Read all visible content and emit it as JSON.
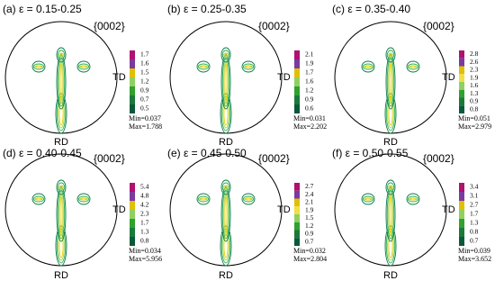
{
  "panels": [
    {
      "title": "(a) ε = 0.15-0.25",
      "plane": "{0002}",
      "td": "TD",
      "rd": "RD",
      "levels": [
        "1.7",
        "1.6",
        "1.5",
        "1.2",
        "0.9",
        "0.7",
        "0.5"
      ],
      "min": "Min=0.037",
      "max": "Max=1.788"
    },
    {
      "title": "(b) ε = 0.25-0.35",
      "plane": "{0002}",
      "td": "TD",
      "rd": "RD",
      "levels": [
        "2.1",
        "1.9",
        "1.7",
        "1.6",
        "1.2",
        "0.9",
        "0.6"
      ],
      "min": "Min=0.031",
      "max": "Max=2.202"
    },
    {
      "title": "(c) ε = 0.35-0.40",
      "plane": "{0002}",
      "td": "TD",
      "rd": "RD",
      "levels": [
        "2.8",
        "2.6",
        "2.3",
        "1.9",
        "1.6",
        "1.3",
        "0.9",
        "0.8"
      ],
      "min": "Min=0.051",
      "max": "Max=2.979"
    },
    {
      "title": "(d) ε = 0.40-0.45",
      "plane": "{0002}",
      "td": "TD",
      "rd": "RD",
      "levels": [
        "5.4",
        "4.8",
        "4.2",
        "2.3",
        "1.7",
        "1.3",
        "0.8"
      ],
      "min": "Min=0.034",
      "max": "Max=5.956"
    },
    {
      "title": "(e) ε = 0.45-0.50",
      "plane": "{0002}",
      "td": "TD",
      "rd": "RD",
      "levels": [
        "2.7",
        "2.4",
        "2.1",
        "1.9",
        "1.5",
        "1.2",
        "0.9",
        "0.7"
      ],
      "min": "Min=0.032",
      "max": "Max=2.804"
    },
    {
      "title": "(f) ε = 0.50-0.55",
      "plane": "{0002}",
      "td": "TD",
      "rd": "RD",
      "levels": [
        "3.4",
        "3.1",
        "2.7",
        "1.7",
        "1.3",
        "0.8",
        "0.7"
      ],
      "min": "Min=0.039",
      "max": "Max=3.652"
    }
  ]
}
